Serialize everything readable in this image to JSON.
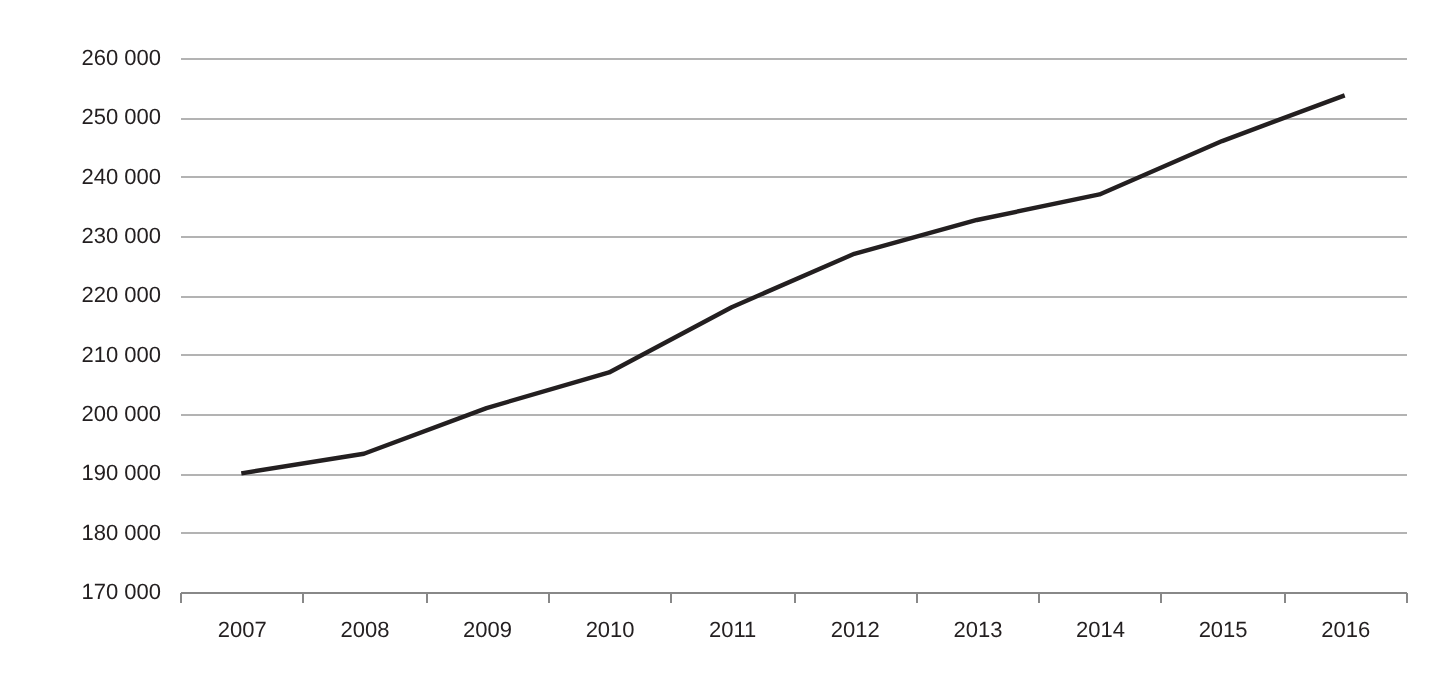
{
  "chart_data": {
    "type": "line",
    "categories": [
      "2007",
      "2008",
      "2009",
      "2010",
      "2011",
      "2012",
      "2013",
      "2014",
      "2015",
      "2016"
    ],
    "series": [
      {
        "color": "#231f20",
        "values": [
          190000,
          193300,
          201000,
          207000,
          218000,
          227000,
          232700,
          237000,
          246000,
          253700
        ]
      }
    ],
    "ylim": [
      170000,
      260000
    ],
    "yticks": [
      {
        "value": 170000,
        "label": "170 000"
      },
      {
        "value": 180000,
        "label": "180 000"
      },
      {
        "value": 190000,
        "label": "190 000"
      },
      {
        "value": 200000,
        "label": "200 000"
      },
      {
        "value": 210000,
        "label": "210 000"
      },
      {
        "value": 220000,
        "label": "220 000"
      },
      {
        "value": 230000,
        "label": "230 000"
      },
      {
        "value": 240000,
        "label": "240 000"
      },
      {
        "value": 250000,
        "label": "250 000"
      },
      {
        "value": 260000,
        "label": "260 000"
      }
    ],
    "grid": "y",
    "marker": "none",
    "line_style": "solid",
    "legend": false
  }
}
